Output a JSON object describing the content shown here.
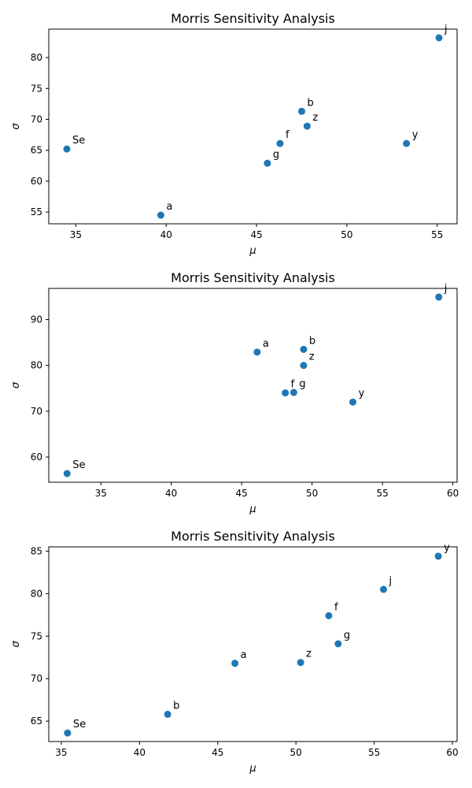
{
  "chart_data": [
    {
      "type": "scatter",
      "title": "Morris Sensitivity Analysis",
      "xlabel": "μ",
      "ylabel": "σ",
      "xlim": [
        33.5,
        56.1
      ],
      "ylim": [
        53.1,
        84.6
      ],
      "xticks": [
        35,
        40,
        45,
        50,
        55
      ],
      "yticks": [
        55,
        60,
        65,
        70,
        75,
        80
      ],
      "marker_color": "#1f77b4",
      "points": [
        {
          "label": "Se",
          "x": 34.5,
          "y": 65.2
        },
        {
          "label": "a",
          "x": 39.7,
          "y": 54.5
        },
        {
          "label": "g",
          "x": 45.6,
          "y": 62.9
        },
        {
          "label": "f",
          "x": 46.3,
          "y": 66.1
        },
        {
          "label": "b",
          "x": 47.5,
          "y": 71.3
        },
        {
          "label": "z",
          "x": 47.8,
          "y": 68.9
        },
        {
          "label": "y",
          "x": 53.3,
          "y": 66.1
        },
        {
          "label": "j",
          "x": 55.1,
          "y": 83.2
        }
      ]
    },
    {
      "type": "scatter",
      "title": "Morris Sensitivity Analysis",
      "xlabel": "μ",
      "ylabel": "σ",
      "xlim": [
        31.3,
        60.3
      ],
      "ylim": [
        54.5,
        96.8
      ],
      "xticks": [
        35,
        40,
        45,
        50,
        55,
        60
      ],
      "yticks": [
        60,
        70,
        80,
        90
      ],
      "marker_color": "#1f77b4",
      "points": [
        {
          "label": "Se",
          "x": 32.6,
          "y": 56.4
        },
        {
          "label": "a",
          "x": 46.1,
          "y": 82.9
        },
        {
          "label": "f",
          "x": 48.1,
          "y": 74.0
        },
        {
          "label": "g",
          "x": 48.7,
          "y": 74.1
        },
        {
          "label": "b",
          "x": 49.4,
          "y": 83.5
        },
        {
          "label": "z",
          "x": 49.4,
          "y": 80.0
        },
        {
          "label": "y",
          "x": 52.9,
          "y": 72.0
        },
        {
          "label": "j",
          "x": 59.0,
          "y": 94.9
        }
      ]
    },
    {
      "type": "scatter",
      "title": "Morris Sensitivity Analysis",
      "xlabel": "μ",
      "ylabel": "σ",
      "xlim": [
        34.2,
        60.3
      ],
      "ylim": [
        62.6,
        85.5
      ],
      "xticks": [
        35,
        40,
        45,
        50,
        55,
        60
      ],
      "yticks": [
        65,
        70,
        75,
        80,
        85
      ],
      "marker_color": "#1f77b4",
      "points": [
        {
          "label": "Se",
          "x": 35.4,
          "y": 63.6
        },
        {
          "label": "b",
          "x": 41.8,
          "y": 65.8
        },
        {
          "label": "a",
          "x": 46.1,
          "y": 71.8
        },
        {
          "label": "z",
          "x": 50.3,
          "y": 71.9
        },
        {
          "label": "f",
          "x": 52.1,
          "y": 77.4
        },
        {
          "label": "g",
          "x": 52.7,
          "y": 74.1
        },
        {
          "label": "j",
          "x": 55.6,
          "y": 80.5
        },
        {
          "label": "y",
          "x": 59.1,
          "y": 84.4
        }
      ]
    }
  ]
}
